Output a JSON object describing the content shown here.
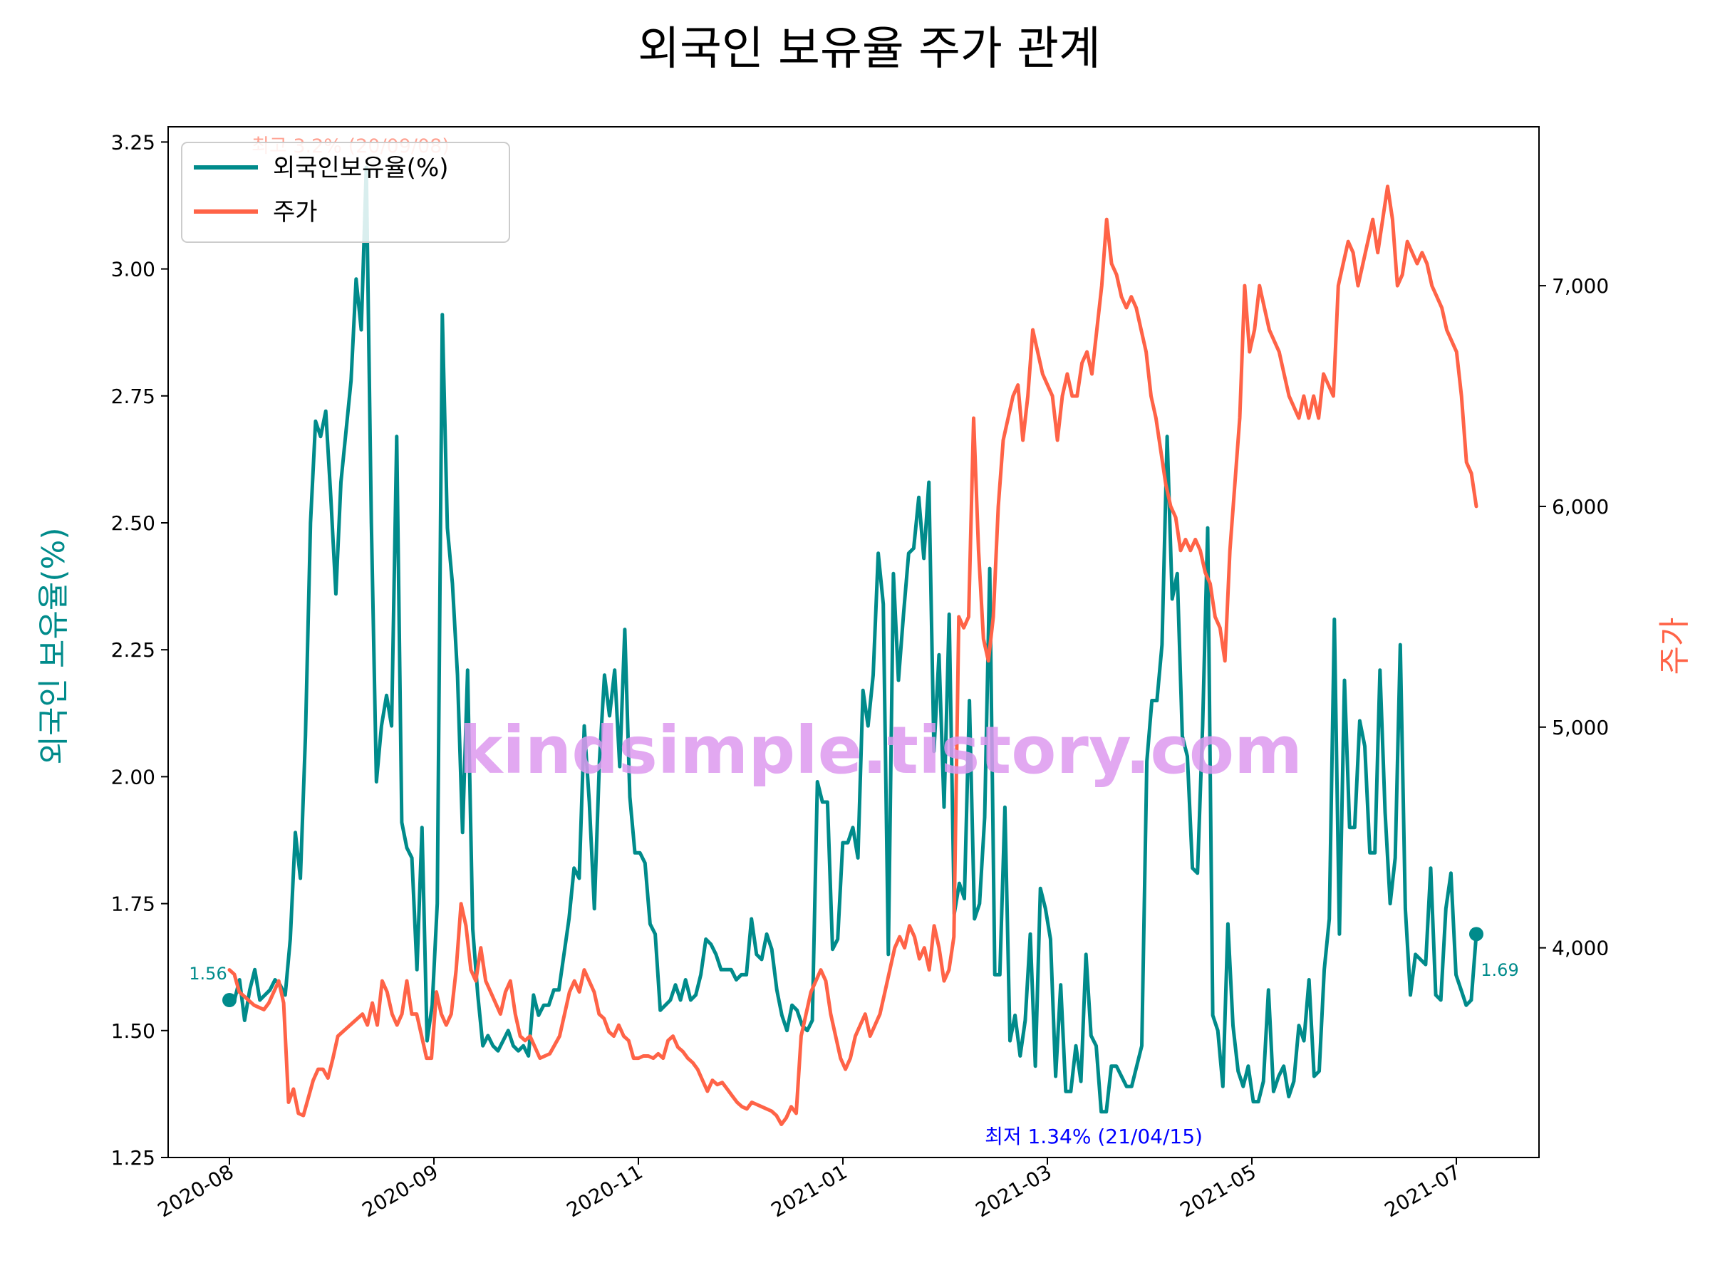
{
  "chart_data": {
    "type": "line",
    "title": "외국인 보유율 주가 관계",
    "xlabel": "",
    "ylabel_left": "외국인 보유율(%)",
    "ylabel_right": "주가",
    "x_ticks": [
      "2020-08",
      "2020-09",
      "2020-11",
      "2021-01",
      "2021-03",
      "2021-05",
      "2021-07"
    ],
    "y_left_ticks": [
      "1.25",
      "1.50",
      "1.75",
      "2.00",
      "2.25",
      "2.50",
      "2.75",
      "3.00",
      "3.25"
    ],
    "y_right_ticks": [
      "4,000",
      "5,000",
      "6,000",
      "7,000"
    ],
    "ylim_left": [
      1.25,
      3.28
    ],
    "ylim_right": [
      3050,
      7720
    ],
    "grid": false,
    "legend_position": "upper-left",
    "colors": {
      "foreign_ratio": "#008b8b",
      "price": "#ff6347",
      "max_annotation": "#ff6347",
      "min_annotation": "#0000ff",
      "watermark": "#dd99ee"
    },
    "series": [
      {
        "name": "외국인보유율(%)",
        "axis": "left",
        "values": [
          1.56,
          1.56,
          1.6,
          1.52,
          1.58,
          1.62,
          1.56,
          1.57,
          1.58,
          1.6,
          1.59,
          1.57,
          1.68,
          1.89,
          1.8,
          2.08,
          2.5,
          2.7,
          2.67,
          2.72,
          2.55,
          2.36,
          2.58,
          2.68,
          2.78,
          2.98,
          2.88,
          3.2,
          2.5,
          1.99,
          2.1,
          2.16,
          2.1,
          2.67,
          1.91,
          1.86,
          1.84,
          1.62,
          1.9,
          1.48,
          1.55,
          1.75,
          2.91,
          2.49,
          2.38,
          2.2,
          1.89,
          2.21,
          1.7,
          1.57,
          1.47,
          1.49,
          1.47,
          1.46,
          1.48,
          1.5,
          1.47,
          1.46,
          1.47,
          1.45,
          1.57,
          1.53,
          1.55,
          1.55,
          1.58,
          1.58,
          1.65,
          1.72,
          1.82,
          1.8,
          2.1,
          1.95,
          1.74,
          2.03,
          2.2,
          2.12,
          2.21,
          2.02,
          2.29,
          1.96,
          1.85,
          1.85,
          1.83,
          1.71,
          1.69,
          1.54,
          1.55,
          1.56,
          1.59,
          1.56,
          1.6,
          1.56,
          1.57,
          1.61,
          1.68,
          1.67,
          1.65,
          1.62,
          1.62,
          1.62,
          1.6,
          1.61,
          1.61,
          1.72,
          1.65,
          1.64,
          1.69,
          1.66,
          1.58,
          1.53,
          1.5,
          1.55,
          1.54,
          1.51,
          1.5,
          1.52,
          1.99,
          1.95,
          1.95,
          1.66,
          1.68,
          1.87,
          1.87,
          1.9,
          1.84,
          2.17,
          2.1,
          2.2,
          2.44,
          2.34,
          1.65,
          2.4,
          2.19,
          2.32,
          2.44,
          2.45,
          2.55,
          2.43,
          2.58,
          2.05,
          2.24,
          1.94,
          2.32,
          1.73,
          1.79,
          1.76,
          2.15,
          1.72,
          1.75,
          1.92,
          2.41,
          1.61,
          1.61,
          1.94,
          1.48,
          1.53,
          1.45,
          1.52,
          1.69,
          1.43,
          1.78,
          1.74,
          1.68,
          1.41,
          1.59,
          1.38,
          1.38,
          1.47,
          1.4,
          1.65,
          1.49,
          1.47,
          1.34,
          1.34,
          1.43,
          1.43,
          1.41,
          1.39,
          1.39,
          1.43,
          1.47,
          2.03,
          2.15,
          2.15,
          2.26,
          2.67,
          2.35,
          2.4,
          2.08,
          2.04,
          1.82,
          1.81,
          2.1,
          2.49,
          1.53,
          1.5,
          1.39,
          1.71,
          1.51,
          1.42,
          1.39,
          1.43,
          1.36,
          1.36,
          1.4,
          1.58,
          1.38,
          1.41,
          1.43,
          1.37,
          1.4,
          1.51,
          1.48,
          1.6,
          1.41,
          1.42,
          1.62,
          1.72,
          2.31,
          1.69,
          2.19,
          1.9,
          1.9,
          2.11,
          2.06,
          1.85,
          1.85,
          2.21,
          1.93,
          1.75,
          1.84,
          2.26,
          1.74,
          1.57,
          1.65,
          1.64,
          1.63,
          1.82,
          1.57,
          1.56,
          1.74,
          1.81,
          1.61,
          1.58,
          1.55,
          1.56,
          1.69
        ]
      },
      {
        "name": "주가",
        "axis": "right",
        "values": [
          3900,
          3880,
          3800,
          3780,
          3760,
          3740,
          3730,
          3720,
          3750,
          3800,
          3850,
          3750,
          3300,
          3360,
          3250,
          3240,
          3320,
          3400,
          3450,
          3450,
          3410,
          3500,
          3600,
          3620,
          3640,
          3660,
          3680,
          3700,
          3650,
          3750,
          3650,
          3850,
          3800,
          3700,
          3650,
          3700,
          3850,
          3700,
          3700,
          3600,
          3500,
          3500,
          3800,
          3700,
          3650,
          3700,
          3900,
          4200,
          4100,
          3900,
          3850,
          4000,
          3850,
          3800,
          3750,
          3700,
          3800,
          3850,
          3700,
          3600,
          3580,
          3600,
          3550,
          3500,
          3510,
          3520,
          3560,
          3600,
          3700,
          3800,
          3850,
          3800,
          3900,
          3850,
          3800,
          3700,
          3680,
          3620,
          3600,
          3650,
          3600,
          3580,
          3500,
          3500,
          3510,
          3510,
          3500,
          3520,
          3500,
          3580,
          3600,
          3550,
          3530,
          3500,
          3480,
          3450,
          3400,
          3350,
          3400,
          3380,
          3390,
          3360,
          3330,
          3300,
          3280,
          3270,
          3300,
          3290,
          3280,
          3270,
          3260,
          3240,
          3200,
          3230,
          3280,
          3250,
          3600,
          3700,
          3800,
          3850,
          3900,
          3850,
          3700,
          3600,
          3500,
          3450,
          3500,
          3600,
          3650,
          3700,
          3600,
          3650,
          3700,
          3800,
          3900,
          4000,
          4050,
          4000,
          4100,
          4050,
          3950,
          4000,
          3900,
          4100,
          4000,
          3850,
          3900,
          4050,
          5500,
          5450,
          5500,
          6400,
          5800,
          5400,
          5300,
          5500,
          6000,
          6300,
          6400,
          6500,
          6550,
          6300,
          6500,
          6800,
          6700,
          6600,
          6550,
          6500,
          6300,
          6500,
          6600,
          6500,
          6500,
          6650,
          6700,
          6600,
          6800,
          7000,
          7300,
          7100,
          7050,
          6950,
          6900,
          6950,
          6900,
          6800,
          6700,
          6500,
          6400,
          6250,
          6100,
          6000,
          5950,
          5800,
          5850,
          5800,
          5850,
          5800,
          5700,
          5650,
          5500,
          5450,
          5300,
          5800,
          6100,
          6400,
          7000,
          6700,
          6800,
          7000,
          6900,
          6800,
          6750,
          6700,
          6600,
          6500,
          6450,
          6400,
          6500,
          6400,
          6500,
          6400,
          6600,
          6550,
          6500,
          7000,
          7100,
          7200,
          7150,
          7000,
          7100,
          7200,
          7300,
          7150,
          7300,
          7450,
          7300,
          7000,
          7050,
          7200,
          7150,
          7100,
          7150,
          7100,
          7000,
          6950,
          6900,
          6800,
          6750,
          6700,
          6500,
          6200,
          6150,
          6000
        ]
      }
    ],
    "annotations": {
      "max_text": "최고 3.2% (20/09/08)",
      "min_text": "최저 1.34% (21/04/15)",
      "start_label": "1.56",
      "end_label": "1.69",
      "watermark": "kindsimple.tistory.com"
    }
  }
}
